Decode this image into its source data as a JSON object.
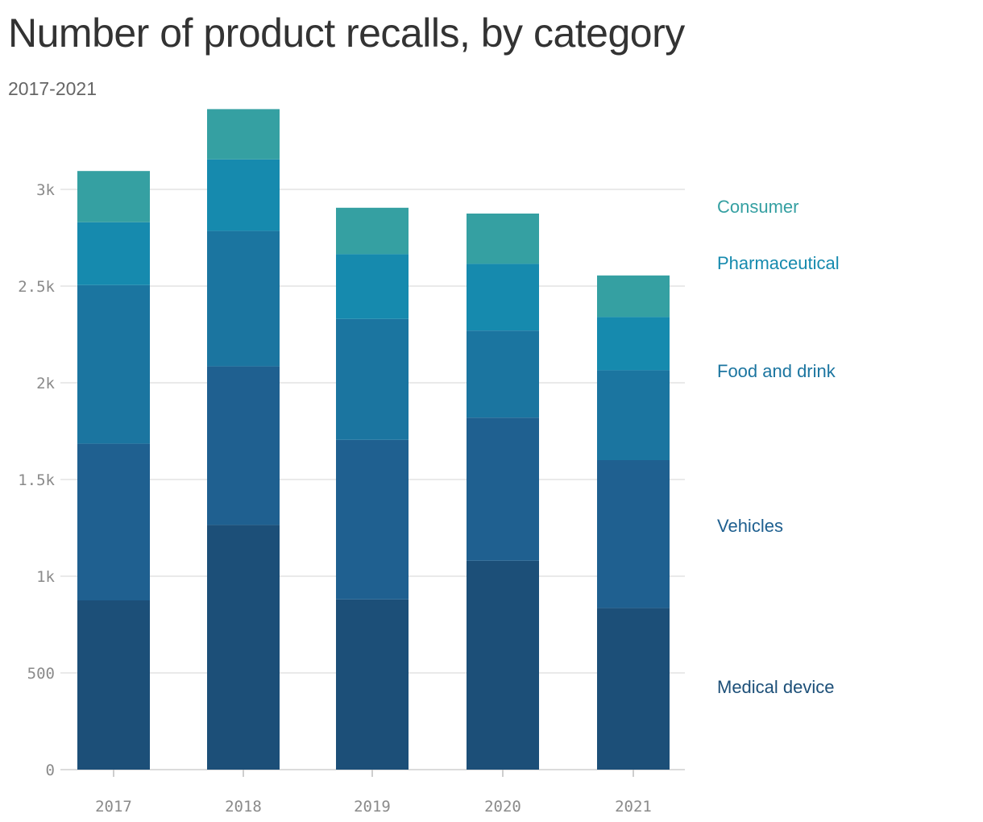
{
  "title": "Number of product recalls, by category",
  "subtitle": "2017-2021",
  "chart_data": {
    "type": "bar",
    "stacked": true,
    "categories": [
      "2017",
      "2018",
      "2019",
      "2020",
      "2021"
    ],
    "series": [
      {
        "name": "Medical device",
        "color": "#1c4f78",
        "values": [
          875,
          1265,
          880,
          1080,
          835
        ]
      },
      {
        "name": "Vehicles",
        "color": "#1f6090",
        "values": [
          810,
          820,
          825,
          740,
          765
        ]
      },
      {
        "name": "Food and drink",
        "color": "#1b75a0",
        "values": [
          820,
          700,
          625,
          450,
          465
        ]
      },
      {
        "name": "Pharmaceutical",
        "color": "#168aae",
        "values": [
          325,
          370,
          335,
          345,
          275
        ]
      },
      {
        "name": "Consumer",
        "color": "#35a0a2",
        "values": [
          265,
          260,
          240,
          260,
          215
        ]
      }
    ],
    "ylim": [
      0,
      3400
    ],
    "yticks": [
      0,
      500,
      1000,
      1500,
      2000,
      2500,
      3000
    ],
    "ytick_labels": [
      "0",
      "500",
      "1k",
      "1.5k",
      "2k",
      "2.5k",
      "3k"
    ],
    "grid": true,
    "legend": "right",
    "xlabel": "",
    "ylabel": ""
  }
}
